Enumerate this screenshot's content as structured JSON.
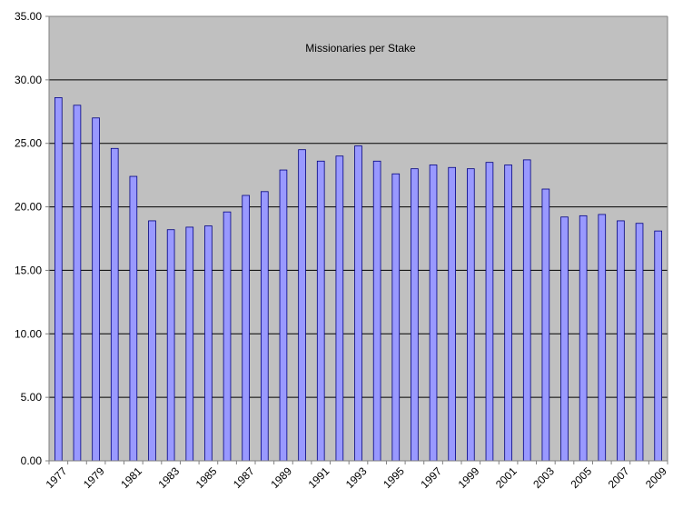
{
  "chart_data": {
    "type": "bar",
    "title": "Missionaries per Stake",
    "xlabel": "",
    "ylabel": "",
    "ylim": [
      0,
      35
    ],
    "yticks": [
      "0.00",
      "5.00",
      "10.00",
      "15.00",
      "20.00",
      "25.00",
      "30.00",
      "35.00"
    ],
    "grid": true,
    "legend": "none",
    "categories": [
      "1977",
      "1978",
      "1979",
      "1980",
      "1981",
      "1982",
      "1983",
      "1984",
      "1985",
      "1986",
      "1987",
      "1988",
      "1989",
      "1990",
      "1991",
      "1992",
      "1993",
      "1994",
      "1995",
      "1996",
      "1997",
      "1998",
      "1999",
      "2000",
      "2001",
      "2002",
      "2003",
      "2004",
      "2005",
      "2006",
      "2007",
      "2008",
      "2009"
    ],
    "tick_labels": [
      "1977",
      "1979",
      "1981",
      "1983",
      "1985",
      "1987",
      "1989",
      "1991",
      "1993",
      "1995",
      "1997",
      "1999",
      "2001",
      "2003",
      "2005",
      "2007",
      "2009"
    ],
    "values": [
      28.6,
      28.0,
      27.0,
      24.6,
      22.4,
      18.9,
      18.2,
      18.4,
      18.5,
      19.6,
      20.9,
      21.2,
      22.9,
      24.5,
      23.6,
      24.0,
      24.8,
      23.6,
      22.6,
      23.0,
      23.3,
      23.1,
      23.0,
      23.5,
      23.3,
      23.7,
      21.4,
      19.2,
      19.3,
      19.4,
      18.9,
      18.7,
      18.1
    ],
    "colors": {
      "plot_bg": "#c0c0c0",
      "bar_fill": "#9999ff",
      "bar_stroke": "#000080",
      "grid": "#000000",
      "axis": "#808080"
    }
  }
}
